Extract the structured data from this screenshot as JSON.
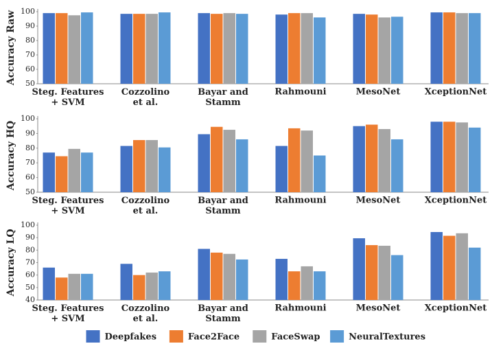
{
  "chart_data": [
    {
      "type": "bar",
      "ylabel": "Accuracy Raw",
      "categories": [
        "Steg. Features\n+ SVM",
        "Cozzolino\net al.",
        "Bayar and\nStamm",
        "Rahmouni",
        "MesoNet",
        "XceptionNet"
      ],
      "ylim": [
        50,
        100
      ],
      "yticks": [
        50,
        60,
        70,
        80,
        90,
        100
      ],
      "series": [
        {
          "name": "Deepfakes",
          "color": "#4472c4",
          "values": [
            99,
            98.5,
            99,
            98,
            98.5,
            99.5
          ]
        },
        {
          "name": "Face2Face",
          "color": "#ed7d31",
          "values": [
            99,
            98.5,
            98.5,
            99,
            98,
            99.5
          ]
        },
        {
          "name": "FaceSwap",
          "color": "#a5a5a5",
          "values": [
            97.5,
            98.5,
            99,
            99,
            96,
            99
          ]
        },
        {
          "name": "NeuralTextures",
          "color": "#5b9bd5",
          "values": [
            99.5,
            99.5,
            98.5,
            96,
            96.5,
            99
          ]
        }
      ]
    },
    {
      "type": "bar",
      "ylabel": "Accuracy HQ",
      "categories": [
        "Steg. Features\n+ SVM",
        "Cozzolino\net al.",
        "Bayar and\nStamm",
        "Rahmouni",
        "MesoNet",
        "XceptionNet"
      ],
      "ylim": [
        50,
        100
      ],
      "yticks": [
        50,
        60,
        70,
        80,
        90,
        100
      ],
      "series": [
        {
          "name": "Deepfakes",
          "color": "#4472c4",
          "values": [
            77,
            81.5,
            89.5,
            81.5,
            95,
            98
          ]
        },
        {
          "name": "Face2Face",
          "color": "#ed7d31",
          "values": [
            74.5,
            85.5,
            94.5,
            93.5,
            96,
            98
          ]
        },
        {
          "name": "FaceSwap",
          "color": "#a5a5a5",
          "values": [
            79.5,
            85.5,
            92.5,
            92,
            93,
            97.5
          ]
        },
        {
          "name": "NeuralTextures",
          "color": "#5b9bd5",
          "values": [
            77,
            80.5,
            86,
            75,
            86,
            94
          ]
        }
      ]
    },
    {
      "type": "bar",
      "ylabel": "Accuracy LQ",
      "categories": [
        "Steg. Features\n+ SVM",
        "Cozzolino\net al.",
        "Bayar and\nStamm",
        "Rahmouni",
        "MesoNet",
        "XceptionNet"
      ],
      "ylim": [
        40,
        100
      ],
      "yticks": [
        40,
        50,
        60,
        70,
        80,
        90,
        100
      ],
      "series": [
        {
          "name": "Deepfakes",
          "color": "#4472c4",
          "values": [
            66,
            69,
            81,
            73,
            89.5,
            94.5
          ]
        },
        {
          "name": "Face2Face",
          "color": "#ed7d31",
          "values": [
            58,
            60,
            78,
            63,
            84,
            91.5
          ]
        },
        {
          "name": "FaceSwap",
          "color": "#a5a5a5",
          "values": [
            61,
            62,
            77,
            67,
            83.5,
            93.5
          ]
        },
        {
          "name": "NeuralTextures",
          "color": "#5b9bd5",
          "values": [
            61,
            63,
            72.5,
            63,
            76,
            82
          ]
        }
      ]
    }
  ]
}
